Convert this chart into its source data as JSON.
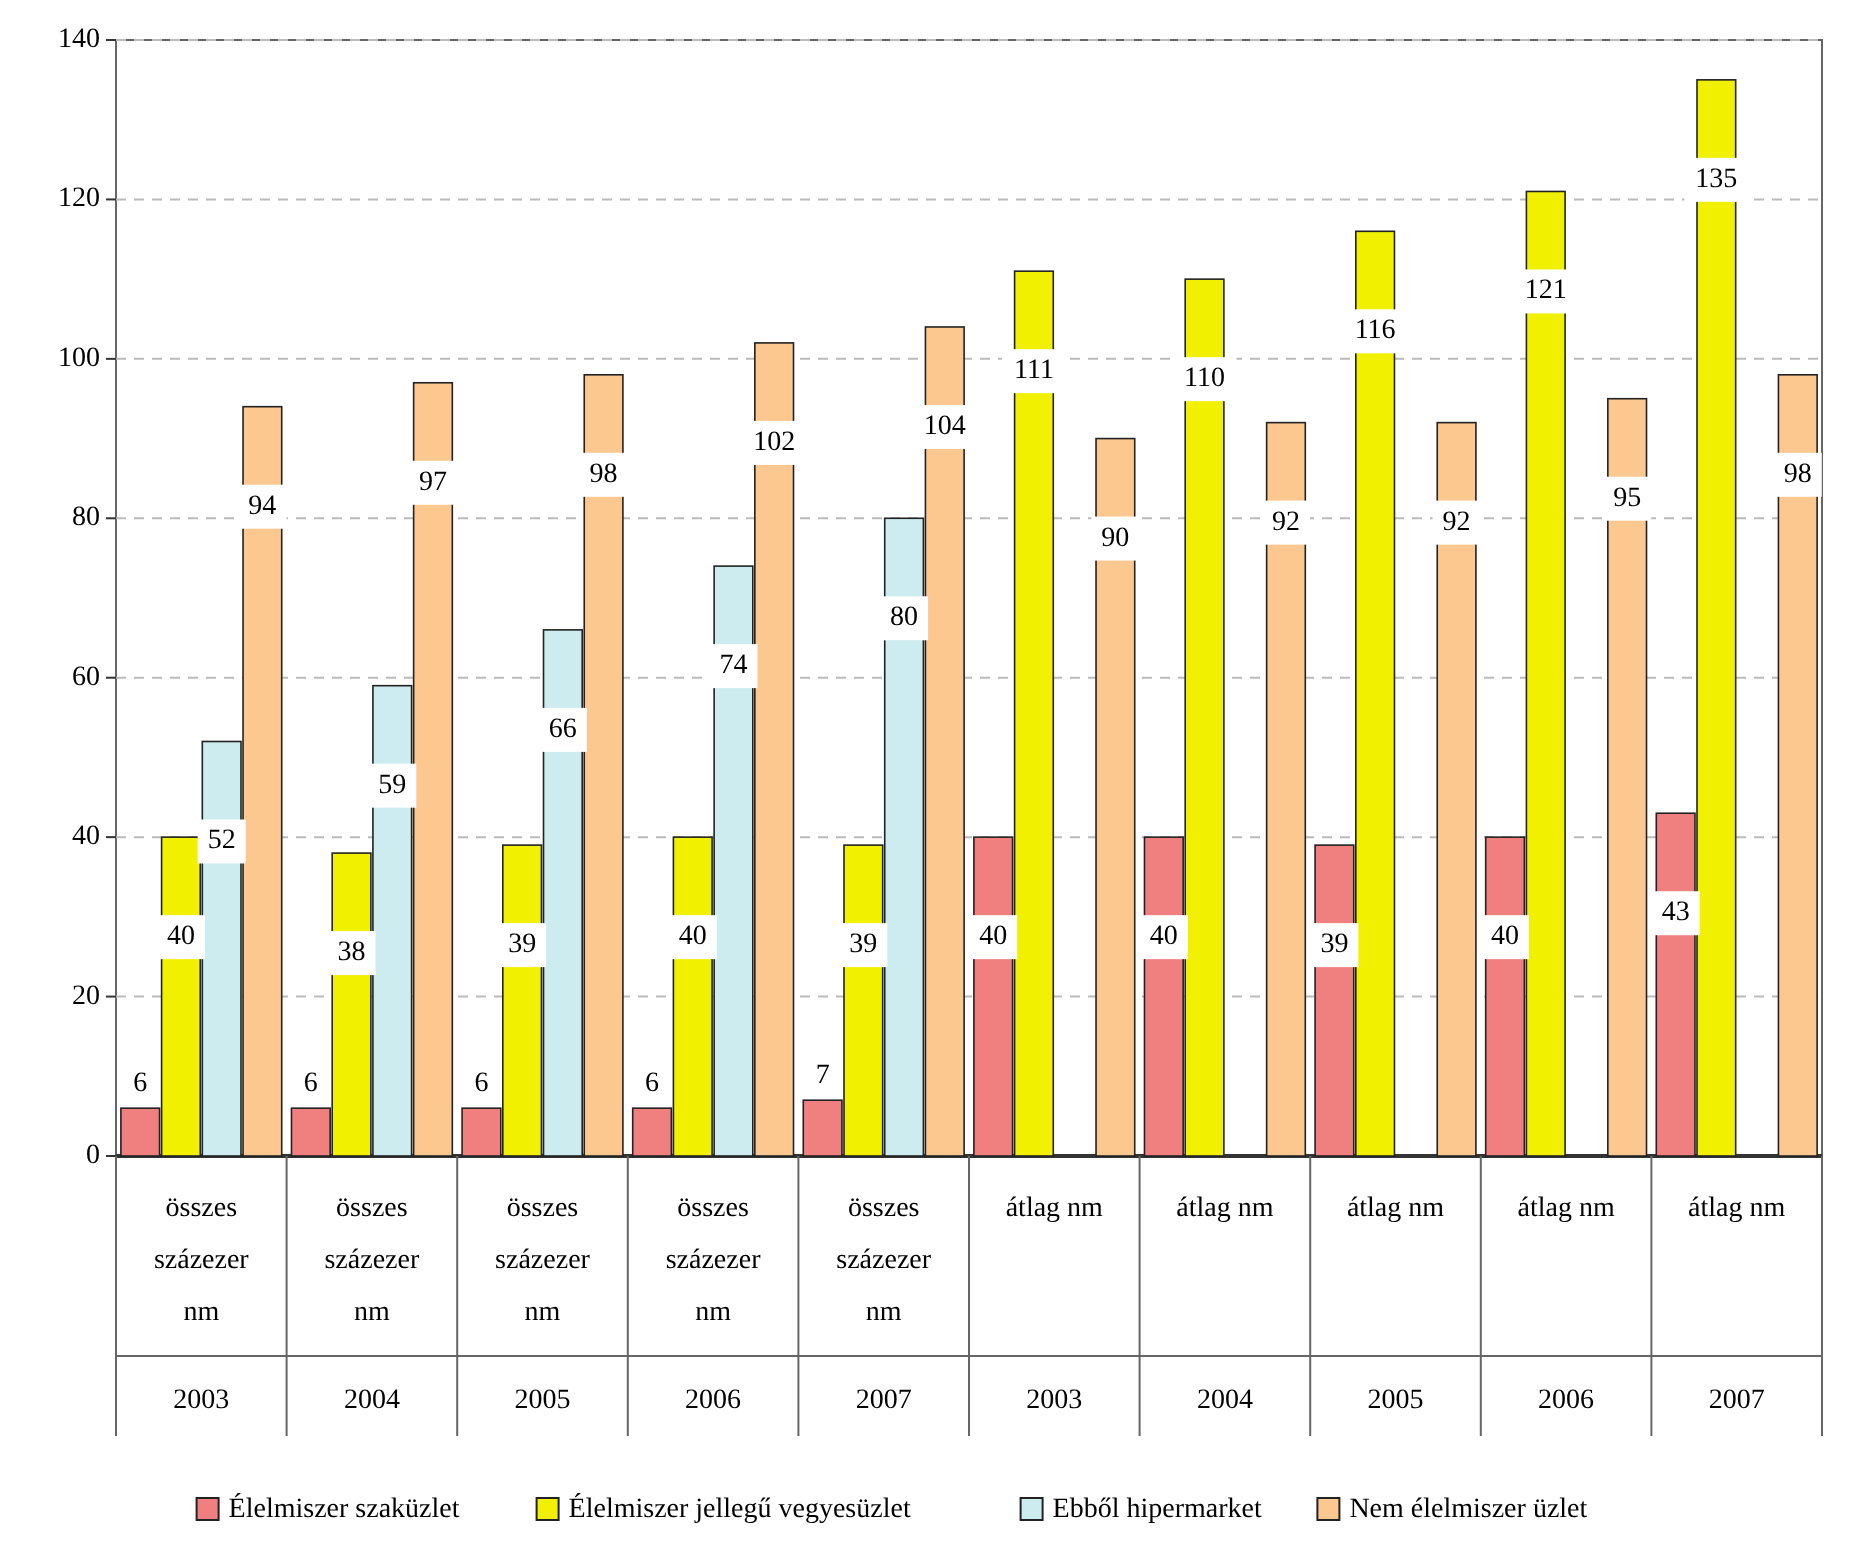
{
  "chart_data": {
    "type": "bar",
    "categories": [
      "összes százezer nm\n2003",
      "összes százezer nm\n2004",
      "összes százezer nm\n2005",
      "összes százezer nm\n2006",
      "összes százezer nm\n2007",
      "átlag nm\n2003",
      "átlag nm\n2004",
      "átlag nm\n2005",
      "átlag nm\n2006",
      "átlag nm\n2007"
    ],
    "series": [
      {
        "name": "Élelmiszer szaküzlet",
        "color": "#f08080",
        "values": [
          6,
          6,
          6,
          6,
          7,
          40,
          40,
          39,
          40,
          43
        ]
      },
      {
        "name": "Élelmiszer jellegű vegyesüzlet",
        "color": "#f0f000",
        "values": [
          40,
          38,
          39,
          40,
          39,
          111,
          110,
          116,
          121,
          135
        ]
      },
      {
        "name": "Ebből hipermarket",
        "color": "#ccecf0",
        "values": [
          52,
          59,
          66,
          74,
          80,
          null,
          null,
          null,
          null,
          null
        ]
      },
      {
        "name": "Nem élelmiszer üzlet",
        "color": "#fcc890",
        "values": [
          94,
          97,
          98,
          102,
          104,
          90,
          92,
          92,
          95,
          98
        ]
      }
    ],
    "ylim": [
      0,
      140
    ],
    "yticks": [
      0,
      20,
      40,
      60,
      80,
      100,
      120,
      140
    ],
    "grid": "y",
    "legend": "bottom",
    "data_labels": true
  }
}
